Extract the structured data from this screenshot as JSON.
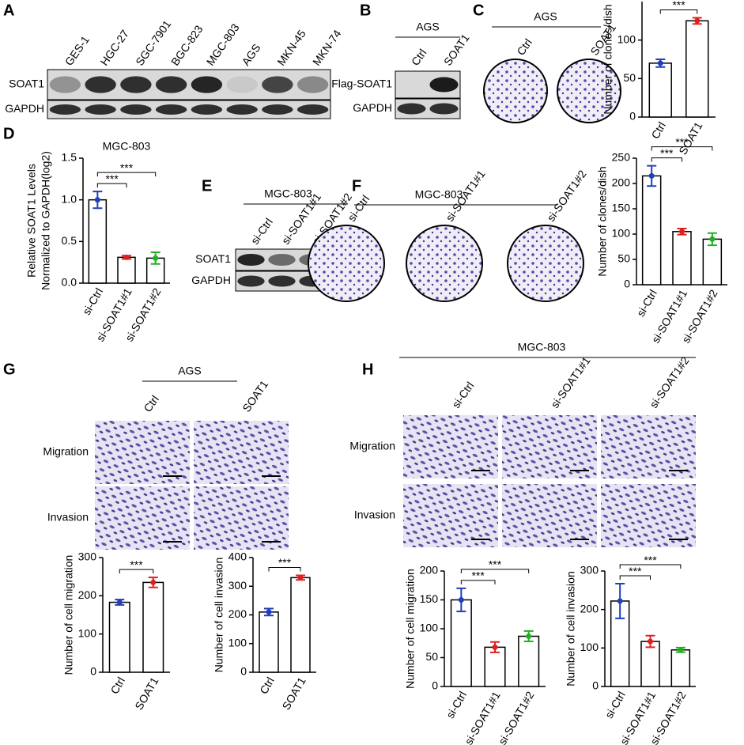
{
  "panel_labels": [
    "A",
    "B",
    "C",
    "D",
    "E",
    "F",
    "G",
    "H"
  ],
  "A": {
    "lanes": [
      "GES-1",
      "HGC-27",
      "SGC-7901",
      "BGC-823",
      "MGC-803",
      "AGS",
      "MKN-45",
      "MKN-74"
    ],
    "rows": [
      "SOAT1",
      "GAPDH"
    ]
  },
  "B": {
    "cell": "AGS",
    "lanes": [
      "Ctrl",
      "SOAT1"
    ],
    "rows": [
      "Flag-SOAT1",
      "GAPDH"
    ]
  },
  "C": {
    "cell": "AGS",
    "dishes": [
      "Ctrl",
      "SOAT1"
    ]
  },
  "E": {
    "cell": "MGC-803",
    "lanes": [
      "si-Ctrl",
      "si-SOAT1#1",
      "si-SOAT1#2"
    ],
    "rows": [
      "SOAT1",
      "GAPDH"
    ]
  },
  "F": {
    "cell": "MGC-803",
    "dishes": [
      "si-Ctrl",
      "si-SOAT1#1",
      "si-SOAT1#2"
    ]
  },
  "G": {
    "cell": "AGS",
    "columns": [
      "Ctrl",
      "SOAT1"
    ],
    "rows": [
      "Migration",
      "Invasion"
    ]
  },
  "H": {
    "cell": "MGC-803",
    "columns": [
      "si-Ctrl",
      "si-SOAT1#1",
      "si-SOAT1#2"
    ],
    "rows": [
      "Migration",
      "Invasion"
    ]
  },
  "chart_data": [
    {
      "type": "bar",
      "ylabel": "Number of clones/dish",
      "categories": [
        "Ctrl",
        "SOAT1"
      ],
      "values": [
        70,
        125
      ],
      "errors": [
        5,
        4
      ],
      "colors": [
        "#1f3fbf",
        "#e02020"
      ],
      "ylim": [
        0,
        150
      ],
      "yticks": [
        0,
        50,
        100
      ],
      "annotations": [
        "***"
      ]
    },
    {
      "type": "bar",
      "title": "MGC-803",
      "ylabel": [
        "Relative SOAT1  Levels",
        "Normalized to GAPDH(log2)"
      ],
      "categories": [
        "si-Ctrl",
        "si-SOAT1#1",
        "si-SOAT1#2"
      ],
      "values": [
        1.0,
        0.31,
        0.3
      ],
      "errors": [
        0.1,
        0.02,
        0.07
      ],
      "colors": [
        "#1f3fbf",
        "#e02020",
        "#20b020"
      ],
      "ylim": [
        0,
        1.5
      ],
      "yticks": [
        {
          "value": 0,
          "label": "0.0"
        },
        0.5,
        {
          "value": 1,
          "label": "1.0"
        },
        1.5
      ],
      "annotations": [
        "***",
        "***"
      ]
    },
    {
      "type": "bar",
      "ylabel": "Number of clones/dish",
      "categories": [
        "si-Ctrl",
        "si-SOAT1#1",
        "si-SOAT1#2"
      ],
      "values": [
        215,
        105,
        90
      ],
      "errors": [
        20,
        6,
        12
      ],
      "colors": [
        "#1f3fbf",
        "#e02020",
        "#20b020"
      ],
      "ylim": [
        0,
        250
      ],
      "yticks": [
        0,
        50,
        100,
        150,
        200,
        250
      ],
      "annotations": [
        "***",
        "***"
      ]
    },
    {
      "type": "bar",
      "ylabel": "Number of cell migration",
      "categories": [
        "Ctrl",
        "SOAT1"
      ],
      "values": [
        183,
        235
      ],
      "errors": [
        7,
        13
      ],
      "colors": [
        "#1f3fbf",
        "#e02020"
      ],
      "ylim": [
        0,
        300
      ],
      "yticks": [
        0,
        100,
        200,
        300
      ],
      "annotations": [
        "***"
      ]
    },
    {
      "type": "bar",
      "ylabel": "Number of cell invasion",
      "categories": [
        "Ctrl",
        "SOAT1"
      ],
      "values": [
        210,
        330
      ],
      "errors": [
        12,
        8
      ],
      "colors": [
        "#1f3fbf",
        "#e02020"
      ],
      "ylim": [
        0,
        400
      ],
      "yticks": [
        0,
        100,
        200,
        300,
        400
      ],
      "annotations": [
        "***"
      ]
    },
    {
      "type": "bar",
      "ylabel": "Number of cell migration",
      "categories": [
        "si-Ctrl",
        "si-SOAT1#1",
        "si-SOAT1#2"
      ],
      "values": [
        150,
        68,
        87
      ],
      "errors": [
        20,
        9,
        9
      ],
      "colors": [
        "#1f3fbf",
        "#e02020",
        "#20b020"
      ],
      "ylim": [
        0,
        200
      ],
      "yticks": [
        0,
        50,
        100,
        150,
        200
      ],
      "annotations": [
        "***",
        "***"
      ]
    },
    {
      "type": "bar",
      "ylabel": "Number of cell invasion",
      "categories": [
        "si-Ctrl",
        "si-SOAT1#1",
        "si-SOAT1#2"
      ],
      "values": [
        222,
        117,
        95
      ],
      "errors": [
        45,
        15,
        6
      ],
      "colors": [
        "#1f3fbf",
        "#e02020",
        "#20b020"
      ],
      "ylim": [
        0,
        300
      ],
      "yticks": [
        0,
        100,
        200,
        300
      ],
      "annotations": [
        "***",
        "***"
      ]
    }
  ]
}
